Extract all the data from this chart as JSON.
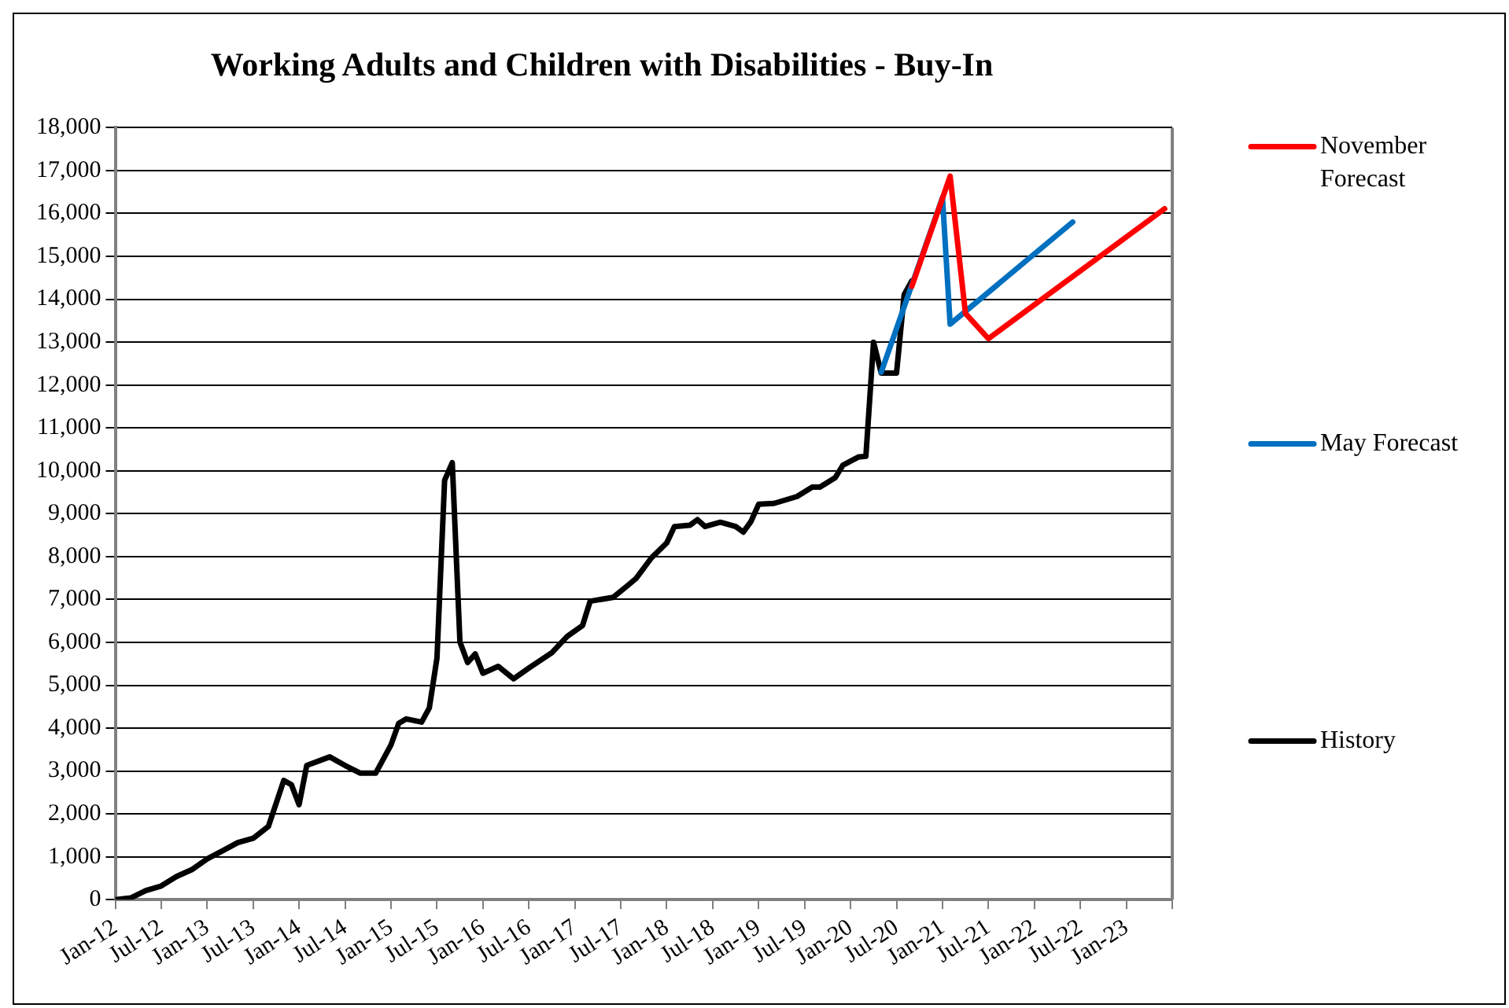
{
  "chart_data": {
    "type": "line",
    "title": "Working Adults and Children with Disabilities - Buy-In",
    "xlim": [
      "2012-01",
      "2023-07"
    ],
    "xticks": [
      {
        "value": "2012-01",
        "label": "Jan-12"
      },
      {
        "value": "2012-07",
        "label": "Jul-12"
      },
      {
        "value": "2013-01",
        "label": "Jan-13"
      },
      {
        "value": "2013-07",
        "label": "Jul-13"
      },
      {
        "value": "2014-01",
        "label": "Jan-14"
      },
      {
        "value": "2014-07",
        "label": "Jul-14"
      },
      {
        "value": "2015-01",
        "label": "Jan-15"
      },
      {
        "value": "2015-07",
        "label": "Jul-15"
      },
      {
        "value": "2016-01",
        "label": "Jan-16"
      },
      {
        "value": "2016-07",
        "label": "Jul-16"
      },
      {
        "value": "2017-01",
        "label": "Jan-17"
      },
      {
        "value": "2017-07",
        "label": "Jul-17"
      },
      {
        "value": "2018-01",
        "label": "Jan-18"
      },
      {
        "value": "2018-07",
        "label": "Jul-18"
      },
      {
        "value": "2019-01",
        "label": "Jan-19"
      },
      {
        "value": "2019-07",
        "label": "Jul-19"
      },
      {
        "value": "2020-01",
        "label": "Jan-20"
      },
      {
        "value": "2020-07",
        "label": "Jul-20"
      },
      {
        "value": "2021-01",
        "label": "Jan-21"
      },
      {
        "value": "2021-07",
        "label": "Jul-21"
      },
      {
        "value": "2022-01",
        "label": "Jan-22"
      },
      {
        "value": "2022-07",
        "label": "Jul-22"
      },
      {
        "value": "2023-01",
        "label": "Jan-23"
      },
      {
        "value": "2023-07",
        "label": null
      }
    ],
    "ylim": [
      0,
      18000
    ],
    "yticks": [
      {
        "value": 0,
        "label": "0"
      },
      {
        "value": 1000,
        "label": "1,000"
      },
      {
        "value": 2000,
        "label": "2,000"
      },
      {
        "value": 3000,
        "label": "3,000"
      },
      {
        "value": 4000,
        "label": "4,000"
      },
      {
        "value": 5000,
        "label": "5,000"
      },
      {
        "value": 6000,
        "label": "6,000"
      },
      {
        "value": 7000,
        "label": "7,000"
      },
      {
        "value": 8000,
        "label": "8,000"
      },
      {
        "value": 9000,
        "label": "9,000"
      },
      {
        "value": 10000,
        "label": "10,000"
      },
      {
        "value": 11000,
        "label": "11,000"
      },
      {
        "value": 12000,
        "label": "12,000"
      },
      {
        "value": 13000,
        "label": "13,000"
      },
      {
        "value": 14000,
        "label": "14,000"
      },
      {
        "value": 15000,
        "label": "15,000"
      },
      {
        "value": 16000,
        "label": "16,000"
      },
      {
        "value": 17000,
        "label": "17,000"
      },
      {
        "value": 18000,
        "label": "18,000"
      }
    ],
    "grid": "y",
    "legend": "right",
    "marker": "none",
    "line_style": "solid",
    "series": [
      {
        "name": "November Forecast",
        "color": "#ff0000",
        "x": [
          "2020-09",
          "2021-02",
          "2021-04",
          "2021-07",
          "2023-06"
        ],
        "values": [
          14300,
          16870,
          13670,
          13080,
          16110
        ]
      },
      {
        "name": "May Forecast",
        "color": "#0070c0",
        "x": [
          "2020-05",
          "2021-01",
          "2021-02",
          "2022-06"
        ],
        "values": [
          12300,
          16370,
          13420,
          15800
        ]
      },
      {
        "name": "History",
        "color": "#000000",
        "x": [
          "2012-01",
          "2012-03",
          "2012-05",
          "2012-07",
          "2012-09",
          "2012-11",
          "2013-01",
          "2013-03",
          "2013-05",
          "2013-07",
          "2013-09",
          "2013-11",
          "2013-12",
          "2014-01",
          "2014-02",
          "2014-05",
          "2014-07",
          "2014-09",
          "2014-11",
          "2015-01",
          "2015-02",
          "2015-03",
          "2015-05",
          "2015-06",
          "2015-07",
          "2015-08",
          "2015-09",
          "2015-10",
          "2015-11",
          "2015-12",
          "2016-01",
          "2016-03",
          "2016-05",
          "2016-07",
          "2016-10",
          "2016-12",
          "2017-02",
          "2017-03",
          "2017-06",
          "2017-08",
          "2017-09",
          "2017-11",
          "2018-01",
          "2018-02",
          "2018-04",
          "2018-05",
          "2018-06",
          "2018-08",
          "2018-10",
          "2018-11",
          "2018-12",
          "2019-01",
          "2019-03",
          "2019-06",
          "2019-08",
          "2019-09",
          "2019-11",
          "2019-12",
          "2020-02",
          "2020-03",
          "2020-04",
          "2020-05",
          "2020-07",
          "2020-08",
          "2020-09"
        ],
        "values": [
          0,
          40,
          215,
          320,
          540,
          700,
          950,
          1140,
          1330,
          1430,
          1710,
          2780,
          2680,
          2215,
          3130,
          3330,
          3130,
          2950,
          2950,
          3610,
          4110,
          4215,
          4140,
          4470,
          5630,
          9780,
          10190,
          6010,
          5530,
          5730,
          5280,
          5440,
          5150,
          5400,
          5760,
          6140,
          6390,
          6960,
          7050,
          7340,
          7490,
          7970,
          8320,
          8700,
          8730,
          8860,
          8700,
          8800,
          8700,
          8570,
          8820,
          9220,
          9240,
          9400,
          9620,
          9620,
          9840,
          10130,
          10320,
          10340,
          13000,
          12280,
          12280,
          14110,
          14430
        ]
      }
    ]
  }
}
